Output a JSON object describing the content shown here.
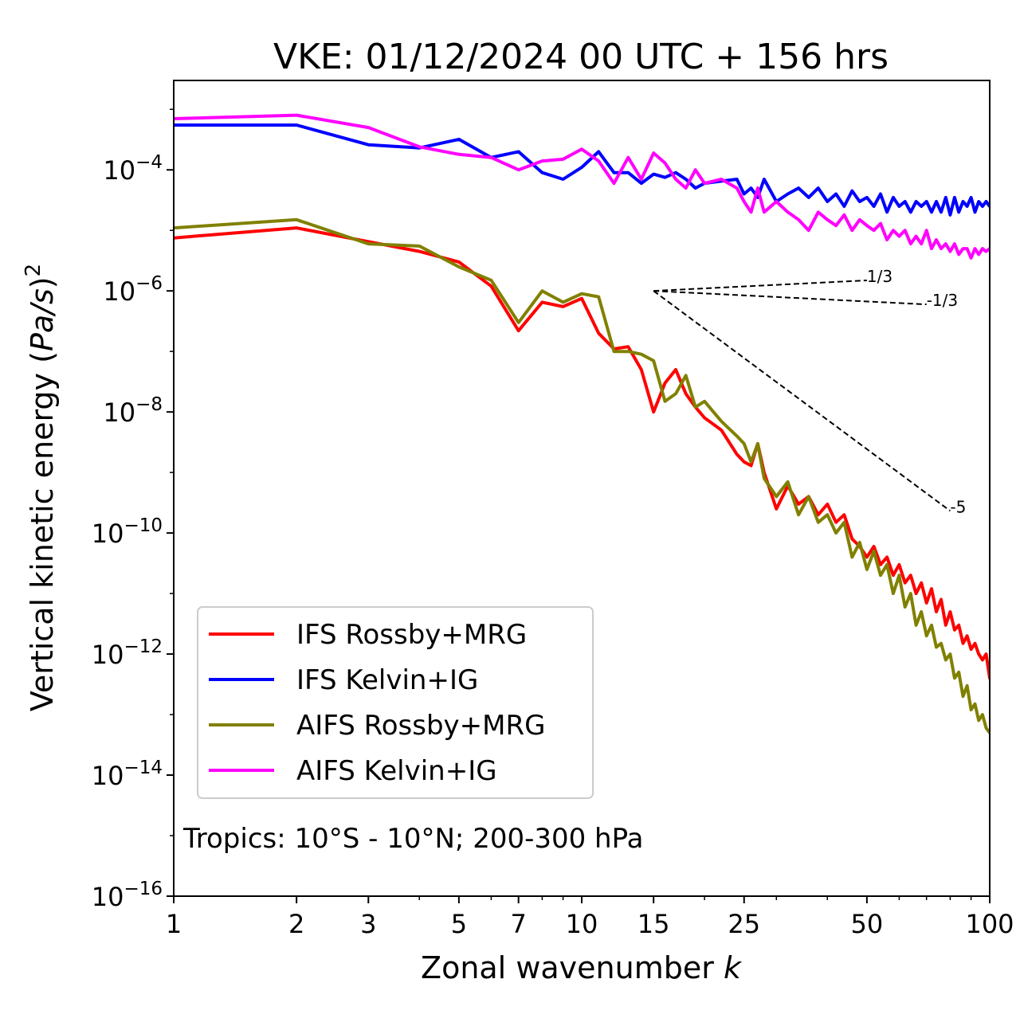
{
  "chart_data": {
    "type": "line",
    "title": "VKE: 01/12/2024 00 UTC + 156 hrs",
    "xlabel_text": "Zonal wavenumber ",
    "xlabel_var": "k",
    "ylabel_text": "Vertical kinetic energy (",
    "ylabel_var": "Pa/s",
    "ylabel_close": ")",
    "ylabel_exp": "2",
    "x_scale": "log",
    "y_scale": "log",
    "xlim": [
      1,
      100
    ],
    "ylim": [
      1e-16,
      0.003
    ],
    "x_ticks": [
      1,
      2,
      3,
      5,
      7,
      10,
      15,
      25,
      50,
      100
    ],
    "x_tick_labels": [
      "1",
      "2",
      "3",
      "5",
      "7",
      "10",
      "15",
      "25",
      "50",
      "100"
    ],
    "y_ticks": [
      -16,
      -14,
      -12,
      -10,
      -8,
      -6,
      -4
    ],
    "y_tick_base": "10",
    "y_tick_exponents": [
      "−16",
      "−14",
      "−12",
      "−10",
      "−8",
      "−6",
      "−4"
    ],
    "annotation": "Tropics: 10°S - 10°N; 200-300 hPa",
    "legend_position": "lower-left",
    "reference_slopes": [
      {
        "label": "1/3",
        "slope": 0.3333,
        "x": [
          15,
          50
        ],
        "y0": 1e-06
      },
      {
        "label": "-1/3",
        "slope": -0.3333,
        "x": [
          15,
          70
        ],
        "y0": 1e-06
      },
      {
        "label": "-5",
        "slope": -5,
        "x": [
          15,
          80
        ],
        "y0": 1e-06
      }
    ],
    "series": [
      {
        "name": "IFS Rossby+MRG",
        "color": "#ff0000",
        "x": [
          1,
          2,
          3,
          4,
          5,
          6,
          7,
          8,
          9,
          10,
          11,
          12,
          13,
          14,
          15,
          16,
          17,
          18,
          19,
          20,
          22,
          24,
          25,
          26,
          27,
          28,
          30,
          32,
          34,
          36,
          38,
          40,
          42,
          44,
          46,
          48,
          50,
          52,
          54,
          56,
          58,
          60,
          62,
          64,
          66,
          68,
          70,
          72,
          74,
          76,
          78,
          80,
          82,
          84,
          86,
          88,
          90,
          92,
          94,
          96,
          98,
          100
        ],
        "y": [
          7.5e-06,
          1.1e-05,
          6.5e-06,
          4.5e-06,
          3e-06,
          1.2e-06,
          2.2e-07,
          6.5e-07,
          5.5e-07,
          7.5e-07,
          2e-07,
          1.1e-07,
          1.2e-07,
          5e-08,
          1e-08,
          3e-08,
          5e-08,
          2e-08,
          1.2e-08,
          8e-09,
          5e-09,
          2e-09,
          1.5e-09,
          1.3e-09,
          3e-09,
          1e-09,
          2.5e-10,
          6e-10,
          3e-10,
          4e-10,
          2e-10,
          3e-10,
          1.5e-10,
          2e-10,
          8e-11,
          6e-11,
          4e-11,
          6e-11,
          3e-11,
          4e-11,
          2e-11,
          3e-11,
          1.5e-11,
          2e-11,
          1e-11,
          1.5e-11,
          7e-12,
          1.2e-11,
          5e-12,
          8e-12,
          3e-12,
          5e-12,
          2.5e-12,
          3e-12,
          1.5e-12,
          2e-12,
          1.2e-12,
          1.5e-12,
          1e-12,
          8e-13,
          1e-12,
          4e-13
        ]
      },
      {
        "name": "IFS Kelvin+IG",
        "color": "#0000ff",
        "x": [
          1,
          2,
          3,
          4,
          5,
          6,
          7,
          8,
          9,
          10,
          11,
          12,
          13,
          14,
          15,
          16,
          17,
          18,
          19,
          20,
          22,
          24,
          25,
          26,
          27,
          28,
          30,
          32,
          34,
          36,
          38,
          40,
          42,
          44,
          46,
          48,
          50,
          52,
          54,
          56,
          58,
          60,
          62,
          64,
          66,
          68,
          70,
          72,
          74,
          76,
          78,
          80,
          82,
          84,
          86,
          88,
          90,
          92,
          94,
          96,
          98,
          100
        ],
        "y": [
          0.00055,
          0.00055,
          0.00026,
          0.00023,
          0.00032,
          0.00016,
          0.0002,
          9e-05,
          7e-05,
          0.00011,
          0.0002,
          9e-05,
          9e-05,
          6e-05,
          8.5e-05,
          7.5e-05,
          9e-05,
          7e-05,
          5e-05,
          6e-05,
          6.5e-05,
          7e-05,
          4e-05,
          5e-05,
          3.5e-05,
          7e-05,
          3e-05,
          4e-05,
          5e-05,
          3.5e-05,
          5e-05,
          3e-05,
          4e-05,
          2.5e-05,
          4.5e-05,
          3e-05,
          3.5e-05,
          2.5e-05,
          4e-05,
          2e-05,
          3.5e-05,
          2.5e-05,
          3e-05,
          2e-05,
          3e-05,
          2.5e-05,
          3e-05,
          2e-05,
          3e-05,
          2e-05,
          3.5e-05,
          1.8e-05,
          3.5e-05,
          2e-05,
          3e-05,
          2.5e-05,
          3.5e-05,
          2e-05,
          3e-05,
          2.5e-05,
          3e-05,
          2.5e-05
        ]
      },
      {
        "name": "AIFS Rossby+MRG",
        "color": "#808000",
        "x": [
          1,
          2,
          3,
          4,
          5,
          6,
          7,
          8,
          9,
          10,
          11,
          12,
          13,
          14,
          15,
          16,
          17,
          18,
          19,
          20,
          22,
          24,
          25,
          26,
          27,
          28,
          30,
          32,
          34,
          36,
          38,
          40,
          42,
          44,
          46,
          48,
          50,
          52,
          54,
          56,
          58,
          60,
          62,
          64,
          66,
          68,
          70,
          72,
          74,
          76,
          78,
          80,
          82,
          84,
          86,
          88,
          90,
          92,
          94,
          96,
          98,
          100
        ],
        "y": [
          1.1e-05,
          1.5e-05,
          6e-06,
          5.5e-06,
          2.5e-06,
          1.5e-06,
          3e-07,
          1e-06,
          6.5e-07,
          9e-07,
          8e-07,
          1e-07,
          1e-07,
          9e-08,
          7e-08,
          1.5e-08,
          2e-08,
          4e-08,
          1.2e-08,
          1.5e-08,
          7e-09,
          4e-09,
          3e-09,
          1.5e-09,
          3e-09,
          8e-10,
          4e-10,
          7e-10,
          2e-10,
          4e-10,
          1.5e-10,
          2e-10,
          1e-10,
          1.5e-10,
          4e-11,
          7e-11,
          2.5e-11,
          5e-11,
          2e-11,
          3e-11,
          1e-11,
          2e-11,
          6e-12,
          1e-11,
          3e-12,
          5e-12,
          2e-12,
          3e-12,
          1.3e-12,
          1.5e-12,
          8e-13,
          1e-12,
          4e-13,
          5e-13,
          2e-13,
          3e-13,
          1.2e-13,
          1.5e-13,
          8e-14,
          1e-13,
          6e-14,
          5e-14
        ]
      },
      {
        "name": "AIFS Kelvin+IG",
        "color": "#ff00ff",
        "x": [
          1,
          2,
          3,
          4,
          5,
          6,
          7,
          8,
          9,
          10,
          11,
          12,
          13,
          14,
          15,
          16,
          17,
          18,
          19,
          20,
          22,
          24,
          25,
          26,
          27,
          28,
          30,
          32,
          34,
          36,
          38,
          40,
          42,
          44,
          46,
          48,
          50,
          52,
          54,
          56,
          58,
          60,
          62,
          64,
          66,
          68,
          70,
          72,
          74,
          76,
          78,
          80,
          82,
          84,
          86,
          88,
          90,
          92,
          94,
          96,
          98,
          100
        ],
        "y": [
          0.0007,
          0.0008,
          0.0005,
          0.00024,
          0.00018,
          0.00016,
          0.0001,
          0.00014,
          0.00015,
          0.00022,
          0.00014,
          6e-05,
          0.00016,
          7e-05,
          0.00019,
          0.00013,
          7e-05,
          5e-05,
          0.0001,
          6e-05,
          7e-05,
          5e-05,
          3e-05,
          2e-05,
          5e-05,
          2e-05,
          3e-05,
          2e-05,
          1.5e-05,
          1e-05,
          2e-05,
          1.5e-05,
          1.2e-05,
          1.8e-05,
          1e-05,
          1.5e-05,
          1.2e-05,
          1e-05,
          1.3e-05,
          7e-06,
          1e-05,
          8e-06,
          1e-05,
          6e-06,
          8e-06,
          6e-06,
          1e-05,
          5e-06,
          7e-06,
          5e-06,
          6e-06,
          4.5e-06,
          6e-06,
          4e-06,
          5e-06,
          5e-06,
          3.5e-06,
          5e-06,
          4e-06,
          5e-06,
          4.5e-06,
          5e-06
        ]
      }
    ]
  }
}
